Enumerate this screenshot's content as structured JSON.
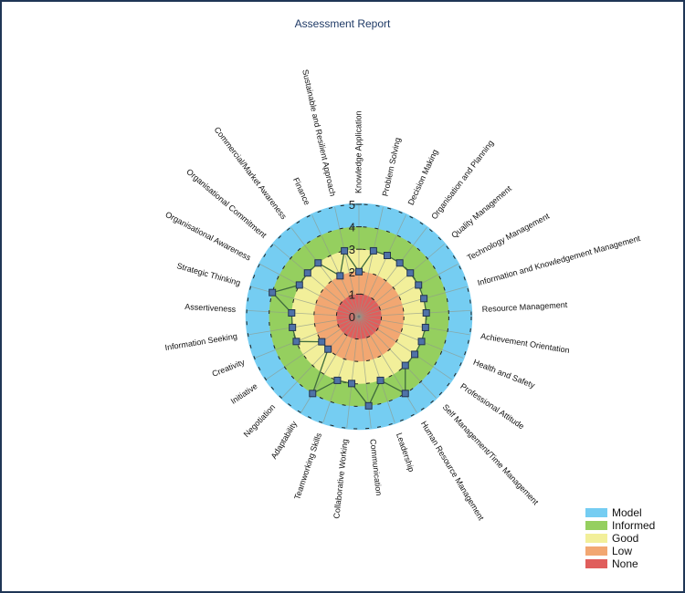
{
  "title": "Assessment Report",
  "legend": [
    {
      "label": "Model",
      "color": "#75cdf2"
    },
    {
      "label": "Informed",
      "color": "#95cf5f"
    },
    {
      "label": "Good",
      "color": "#f2ef9a"
    },
    {
      "label": "Low",
      "color": "#f2a772"
    },
    {
      "label": "None",
      "color": "#e05e5c"
    }
  ],
  "chart_data": {
    "type": "radar",
    "title": "Assessment Report",
    "rlim": [
      0,
      5
    ],
    "rticks": [
      "0",
      "1",
      "2",
      "3",
      "4",
      "5"
    ],
    "bands": [
      {
        "name": "None",
        "from": 0,
        "to": 1,
        "color": "#e05e5c"
      },
      {
        "name": "Low",
        "from": 1,
        "to": 2,
        "color": "#f2a772"
      },
      {
        "name": "Good",
        "from": 2,
        "to": 3,
        "color": "#f2ef9a"
      },
      {
        "name": "Informed",
        "from": 3,
        "to": 4,
        "color": "#95cf5f"
      },
      {
        "name": "Model",
        "from": 4,
        "to": 5,
        "color": "#75cdf2"
      }
    ],
    "categories": [
      "Knowledge Application",
      "Problem Solving",
      "Decision Making",
      "Organisation and Planning",
      "Quality Management",
      "Technology Management",
      "Information and Knowledgement Management",
      "Resource Management",
      "Achievement Orientation",
      "Health and Safety",
      "Professional Attitude",
      "Self Management/Time Management",
      "Human Resource Management",
      "Leadership",
      "Communication",
      "Collaborative Working",
      "Teamworking Skills",
      "Adaptability",
      "Negotiation",
      "Initiative",
      "Creativity",
      "Information Seeking",
      "Assertiveness",
      "Strategic Thinking",
      "Organisational Awareness",
      "Organisational Commitment",
      "Commercial/Market Awareness",
      "Finance",
      "Sustainable and Resilient Approach"
    ],
    "series": [
      {
        "name": "Assessment",
        "color": "#3a5f8f",
        "values": [
          2,
          3,
          3,
          3,
          3,
          3,
          3,
          3,
          3,
          3,
          3,
          3,
          4,
          3,
          4,
          3,
          3,
          4,
          2,
          2,
          3,
          3,
          3,
          4,
          3,
          3,
          3,
          2,
          3
        ]
      }
    ],
    "legend_position": "bottom-right"
  }
}
